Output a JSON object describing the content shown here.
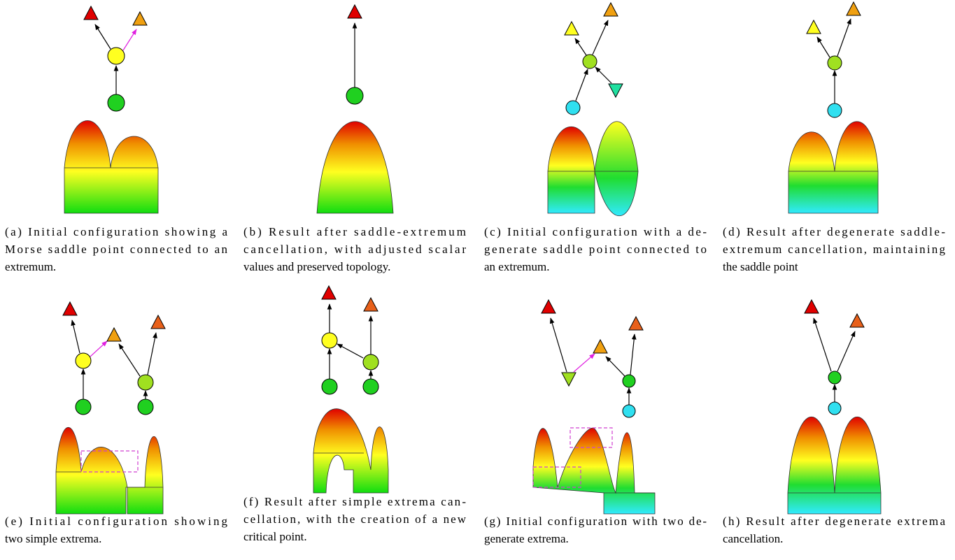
{
  "captions": [
    {
      "lines": [
        "(a) Initial configuration showing a",
        "Morse saddle point connected to an",
        "extremum."
      ]
    },
    {
      "lines": [
        "(b) Result after saddle-extremum",
        "cancellation, with adjusted scalar",
        "values and preserved topology."
      ]
    },
    {
      "lines": [
        "(c) Initial configuration with a de-",
        "generate saddle point connected to",
        "an extremum."
      ]
    },
    {
      "lines": [
        "(d) Result after degenerate saddle-",
        "extremum cancellation, maintaining",
        "the saddle point"
      ]
    },
    {
      "lines": [
        "(e) Initial configuration showing",
        "two simple extrema."
      ]
    },
    {
      "lines": [
        "(f) Result after simple extrema can-",
        "cellation, with the creation of a new",
        "critical point."
      ]
    },
    {
      "lines": [
        "(g) Initial configuration with two de-",
        "generate extrema."
      ]
    },
    {
      "lines": [
        "(h) Result after degenerate extrema",
        "cancellation."
      ]
    }
  ]
}
